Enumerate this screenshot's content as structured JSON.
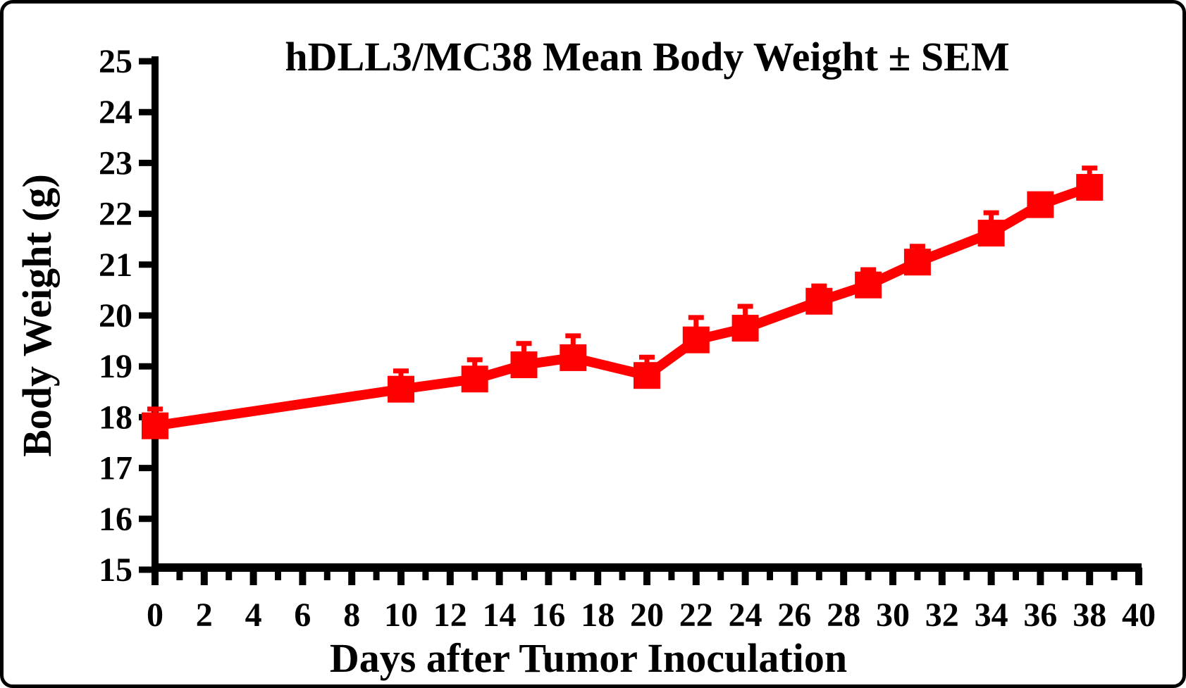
{
  "figure": {
    "kind": "scientific line chart with SEM error bars",
    "background": "#ffffff",
    "frame_color": "#000000"
  },
  "chart_data": {
    "type": "line",
    "title": "hDLL3/MC38 Mean Body Weight ± SEM",
    "xlabel": "Days after Tumor Inoculation",
    "ylabel": "Body Weight (g)",
    "xlim": [
      0,
      40
    ],
    "ylim": [
      15,
      25
    ],
    "x_major_tick_step": 2,
    "x_minor_tick_step": 1,
    "y_tick_step": 1,
    "grid": false,
    "legend": false,
    "axis_color": "#000000",
    "series": [
      {
        "name": "hDLL3/MC38 mean body weight",
        "color": "#ff0000",
        "marker": "square",
        "error_bars": "upper-only SEM",
        "x": [
          0,
          10,
          13,
          15,
          17,
          20,
          22,
          24,
          27,
          29,
          31,
          34,
          36,
          38
        ],
        "mean": [
          17.83,
          18.55,
          18.75,
          19.03,
          19.17,
          18.82,
          19.52,
          19.75,
          20.28,
          20.6,
          21.05,
          21.62,
          22.18,
          22.52
        ],
        "sem": [
          0.33,
          0.36,
          0.38,
          0.42,
          0.43,
          0.36,
          0.44,
          0.43,
          0.3,
          0.3,
          0.31,
          0.4,
          0.0,
          0.38
        ]
      }
    ]
  }
}
